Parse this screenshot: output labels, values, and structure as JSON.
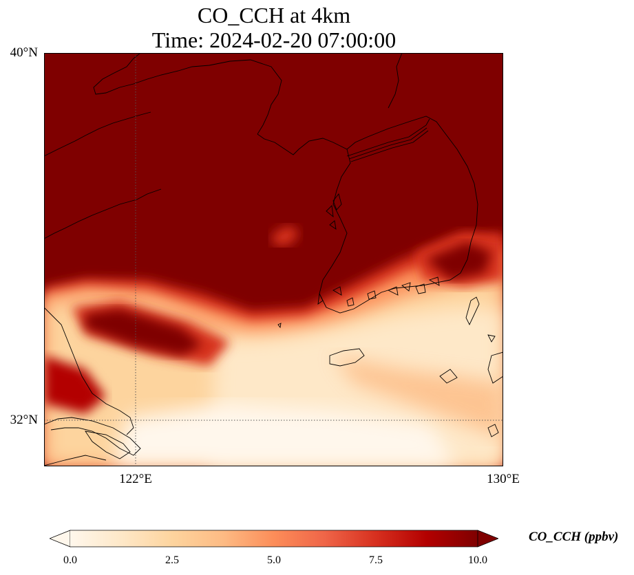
{
  "title": {
    "line1": "CO_CCH at 4km",
    "line2": "Time: 2024-02-20 07:00:00"
  },
  "axes": {
    "lat_labels": [
      "40°N",
      "32°N"
    ],
    "lon_labels": [
      "122°E",
      "130°E"
    ]
  },
  "colorbar": {
    "label": "CO_CCH (ppbv)",
    "ticks": [
      "0.0",
      "2.5",
      "5.0",
      "7.5",
      "10.0"
    ],
    "min": 0,
    "max": 10,
    "extend": "both",
    "colormap": "OrRd",
    "colors": [
      "#fff7ec",
      "#fee8c8",
      "#fdd49e",
      "#fdbb84",
      "#fc8d59",
      "#ef6548",
      "#d7301f",
      "#b30000",
      "#7f0000"
    ]
  },
  "gridlines": {
    "lat": [
      "32°N"
    ],
    "lon": [
      "122°E"
    ],
    "style": "dotted"
  }
}
